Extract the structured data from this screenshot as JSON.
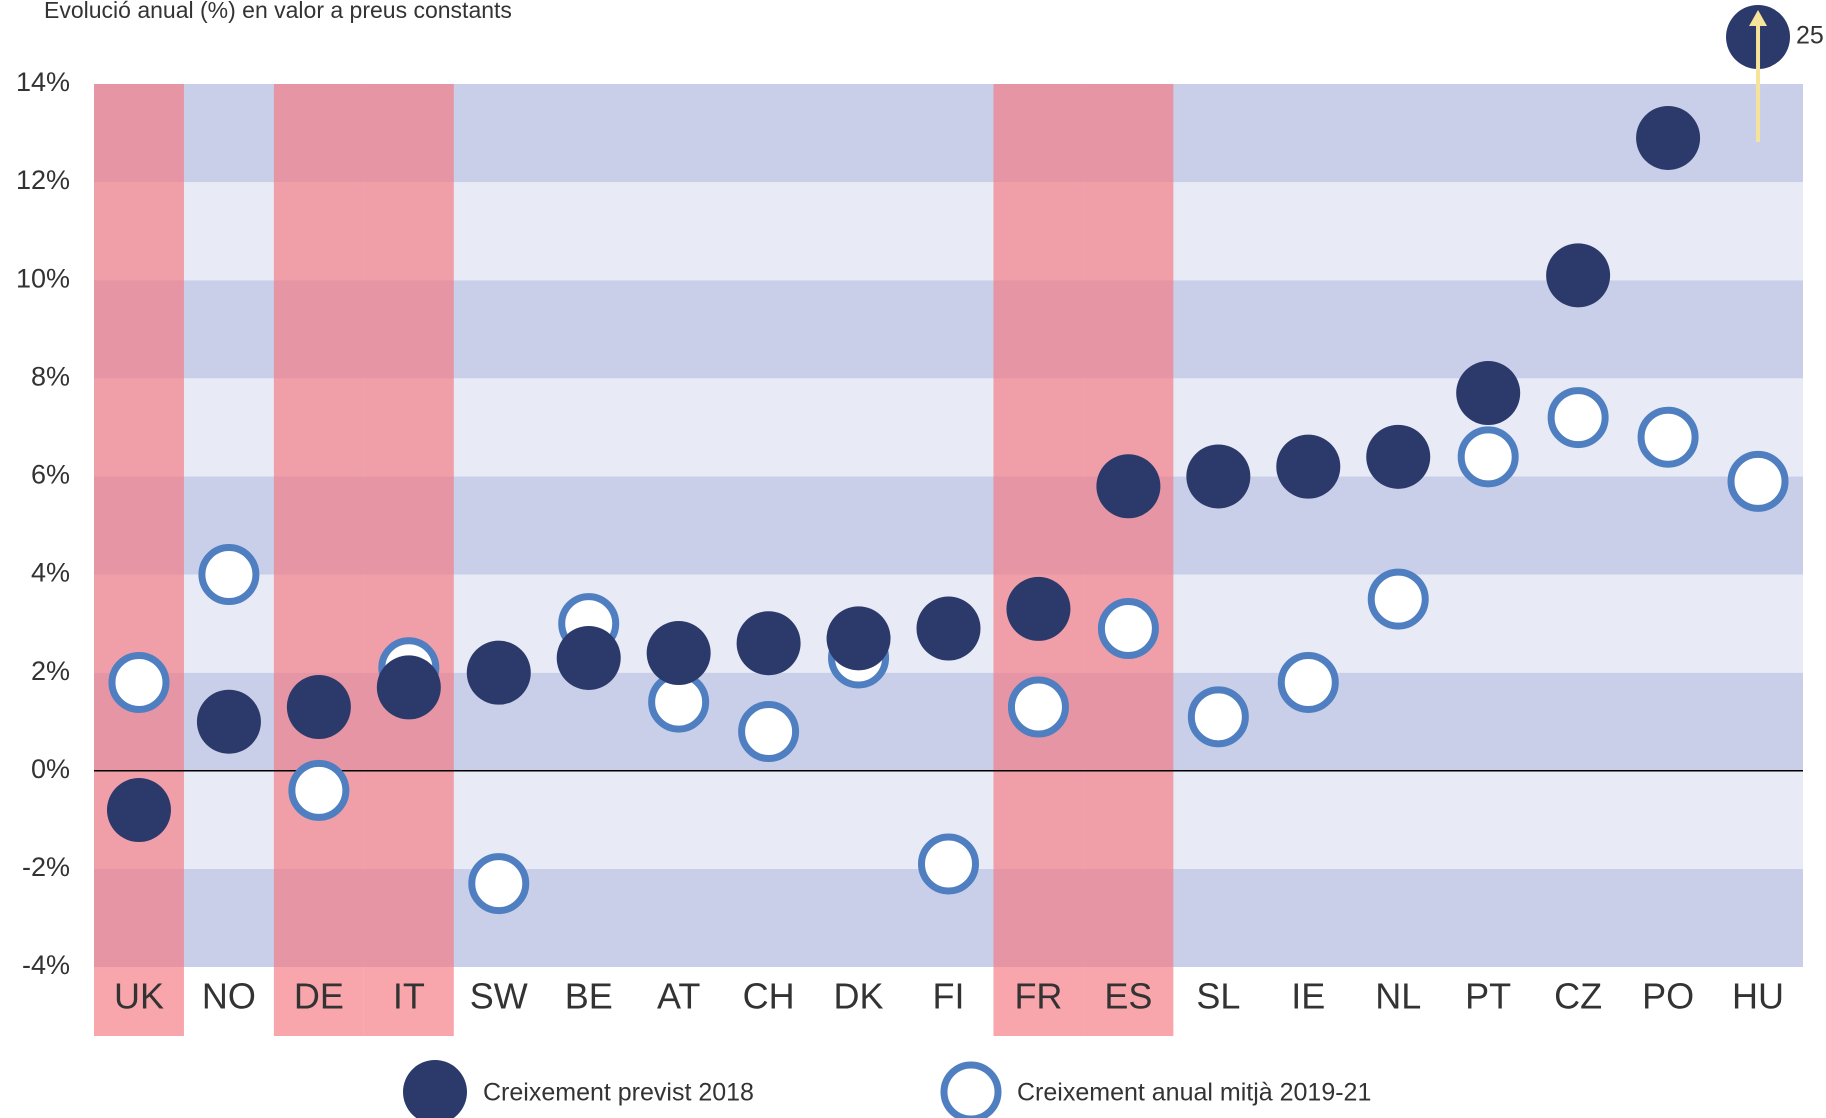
{
  "chart_data": {
    "type": "dot",
    "subtitle": "Evolució anual (%) en valor a preus constants",
    "categories": [
      "UK",
      "NO",
      "DE",
      "IT",
      "SW",
      "BE",
      "AT",
      "CH",
      "DK",
      "FI",
      "FR",
      "ES",
      "SL",
      "IE",
      "NL",
      "PT",
      "CZ",
      "PO",
      "HU"
    ],
    "highlighted": [
      true,
      false,
      true,
      true,
      false,
      false,
      false,
      false,
      false,
      false,
      true,
      true,
      false,
      false,
      false,
      false,
      false,
      false,
      false
    ],
    "highlight_color": "#f4777f",
    "series": [
      {
        "name": "Creixement previst 2018",
        "color": "#2b3a6b",
        "style": "filled",
        "values": [
          -0.8,
          1.0,
          1.3,
          1.7,
          2.0,
          2.3,
          2.4,
          2.6,
          2.7,
          2.9,
          3.3,
          5.8,
          6.0,
          6.2,
          6.4,
          7.7,
          10.1,
          12.9,
          25
        ],
        "value_labels": [
          null,
          null,
          null,
          null,
          null,
          null,
          null,
          null,
          null,
          null,
          null,
          null,
          null,
          null,
          null,
          null,
          null,
          null,
          "25"
        ]
      },
      {
        "name": "Creixement anual mitjà 2019-21",
        "color": "#4f7fc0",
        "style": "hollow",
        "values": [
          1.8,
          4.0,
          -0.4,
          2.1,
          -2.3,
          3.0,
          1.4,
          0.8,
          2.3,
          -1.9,
          1.3,
          2.9,
          1.1,
          1.8,
          3.5,
          6.4,
          7.2,
          6.8,
          5.9
        ]
      }
    ],
    "ylim": [
      -4,
      14
    ],
    "yticks": [
      {
        "value": -4,
        "label": "-4%"
      },
      {
        "value": -2,
        "label": "-2%"
      },
      {
        "value": 0,
        "label": "0%"
      },
      {
        "value": 2,
        "label": "2%"
      },
      {
        "value": 4,
        "label": "4%"
      },
      {
        "value": 6,
        "label": "6%"
      },
      {
        "value": 8,
        "label": "8%"
      },
      {
        "value": 10,
        "label": "10%"
      },
      {
        "value": 12,
        "label": "12%"
      },
      {
        "value": 14,
        "label": "14%"
      }
    ]
  }
}
